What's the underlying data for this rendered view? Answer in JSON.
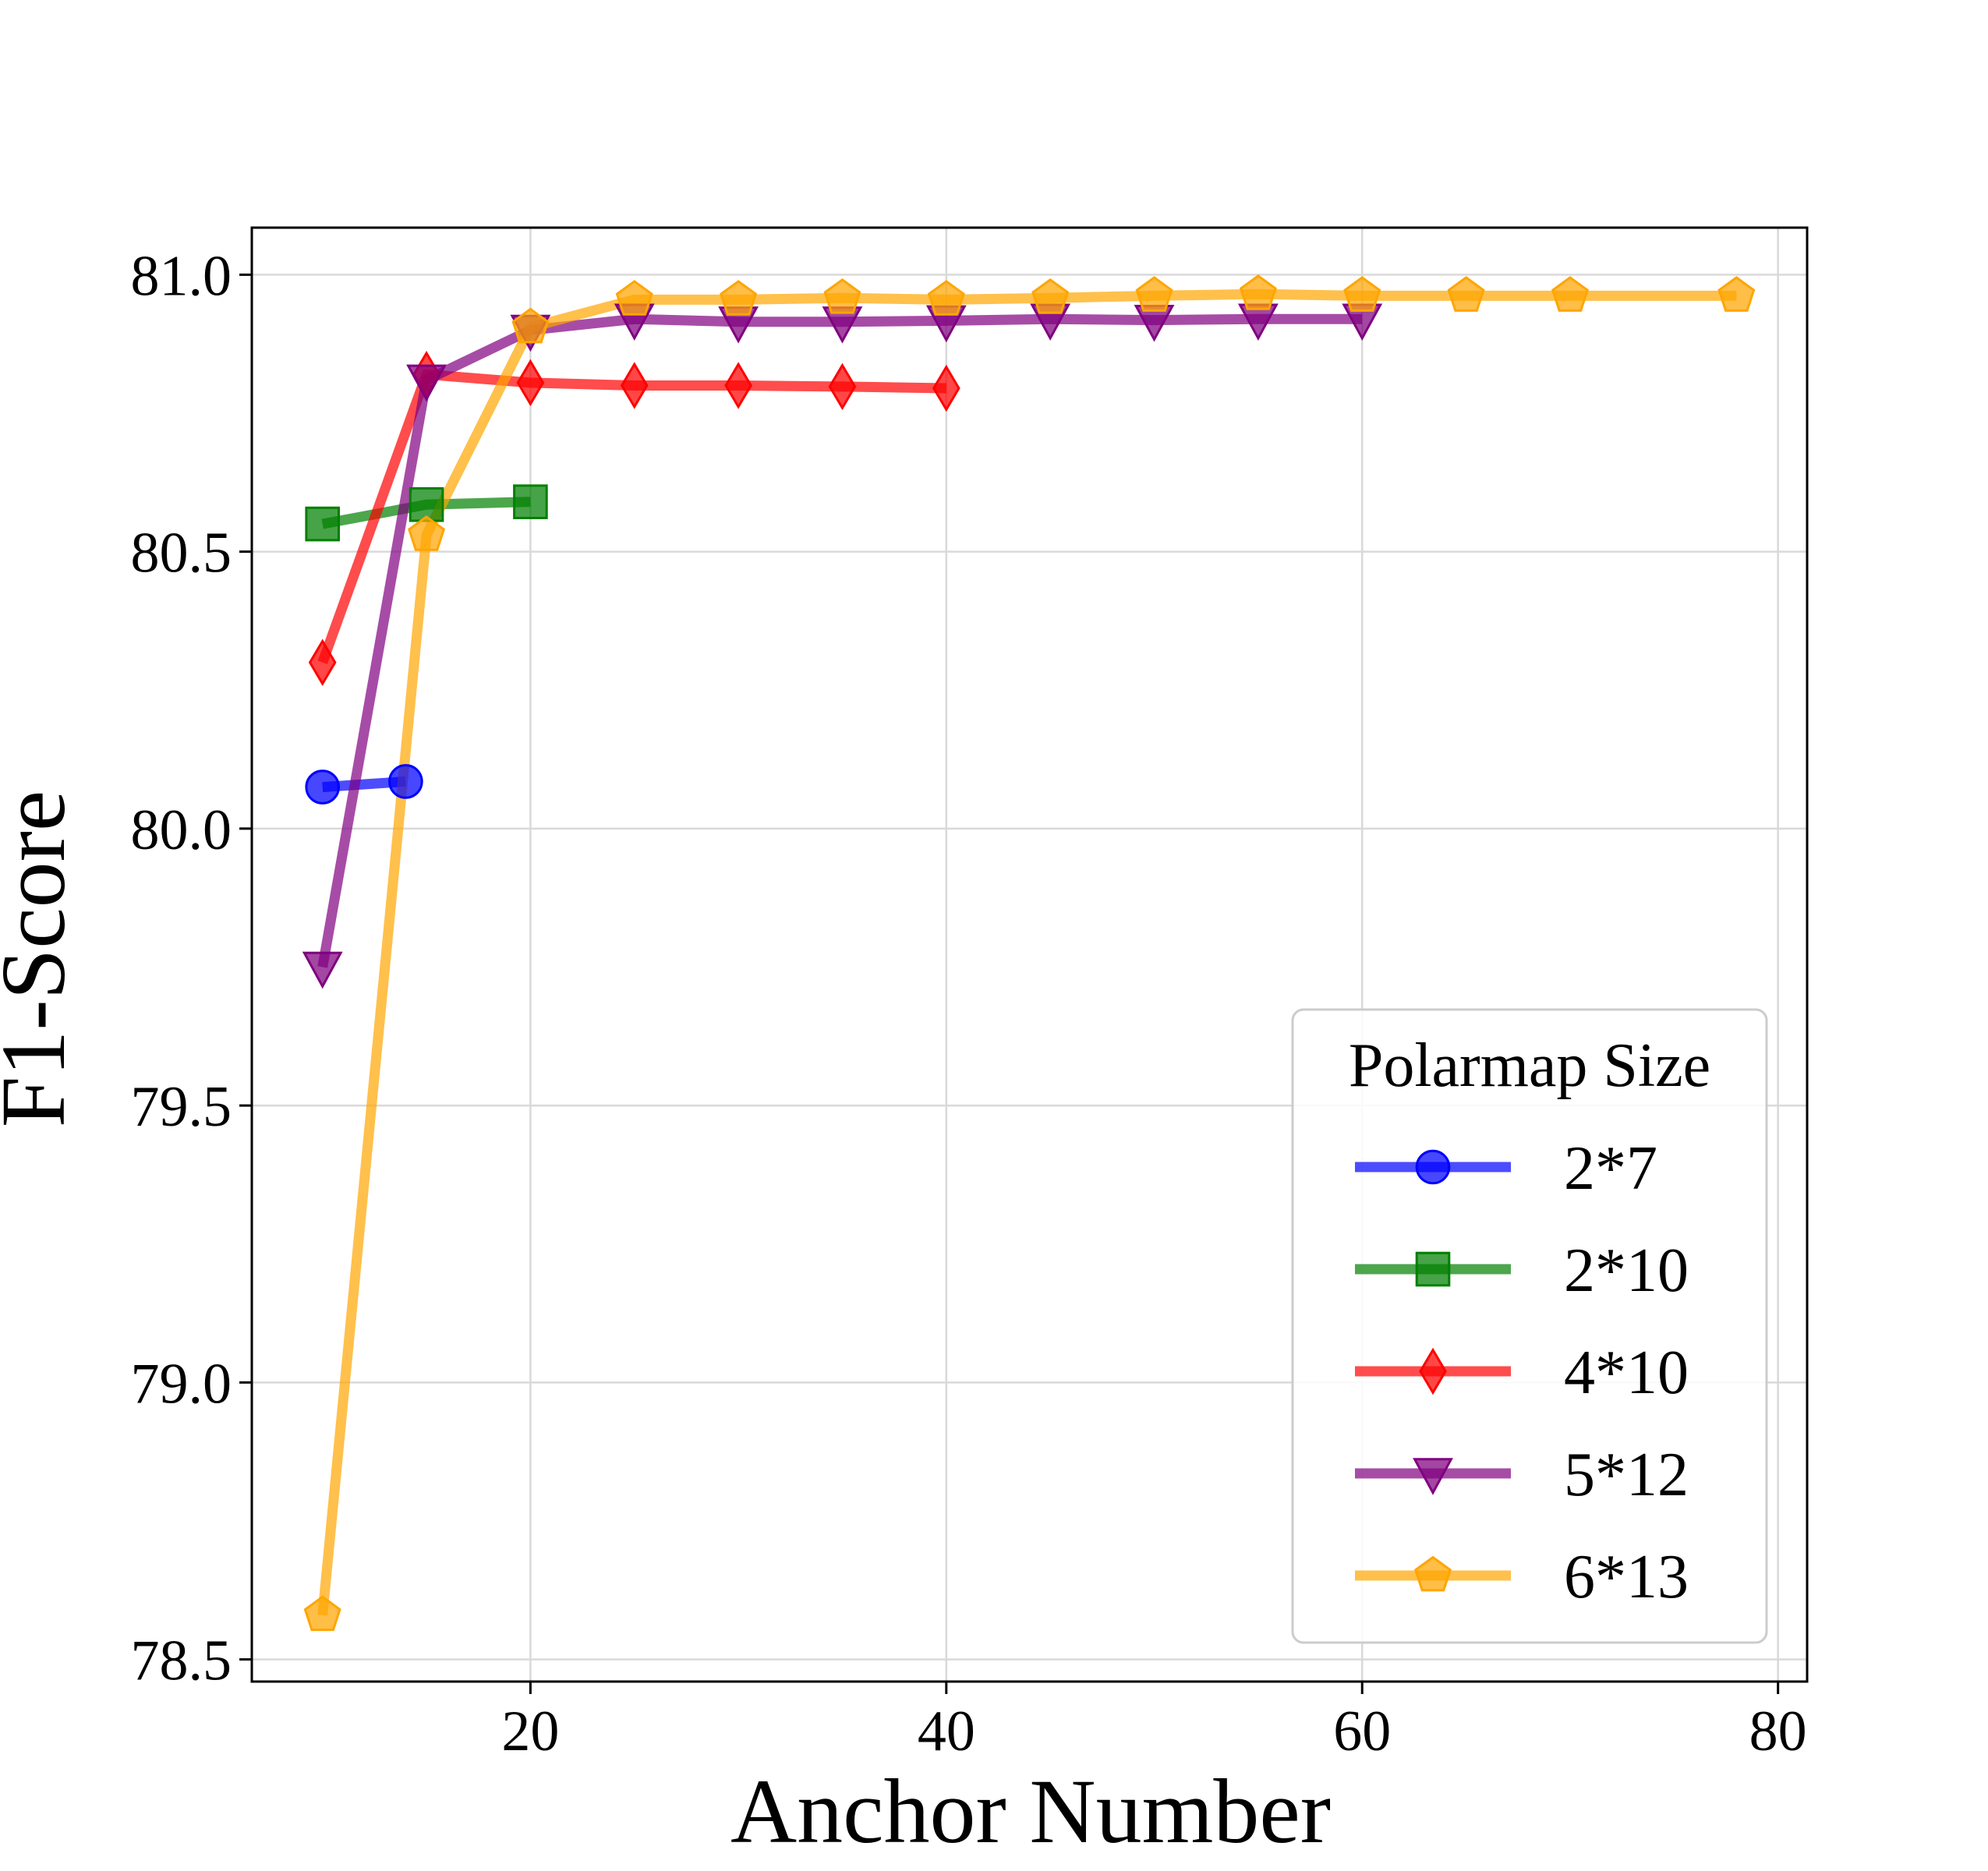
{
  "chart_data": {
    "type": "line",
    "xlabel": "Anchor Number",
    "ylabel": "F1-Score",
    "xlim": [
      6.6,
      81.4
    ],
    "ylim": [
      78.46,
      81.085
    ],
    "xticks": [
      20,
      40,
      60,
      80
    ],
    "yticks": [
      78.5,
      79.0,
      79.5,
      80.0,
      80.5,
      81.0
    ],
    "xtick_labels": [
      "20",
      "40",
      "60",
      "80"
    ],
    "ytick_labels": [
      "78.5",
      "79.0",
      "79.5",
      "80.0",
      "80.5",
      "81.0"
    ],
    "grid": true,
    "legend": {
      "title": "Polarmap Size",
      "placement": "lower-right"
    },
    "series": [
      {
        "name": "2*7",
        "color": "#0000ff",
        "marker": "circle",
        "x": [
          10,
          14
        ],
        "y": [
          80.075,
          80.085
        ]
      },
      {
        "name": "2*10",
        "color": "#008000",
        "marker": "square",
        "x": [
          10,
          15,
          20
        ],
        "y": [
          80.55,
          80.585,
          80.59
        ]
      },
      {
        "name": "4*10",
        "color": "#ff0000",
        "marker": "diamond",
        "x": [
          10,
          15,
          20,
          25,
          30,
          35,
          40
        ],
        "y": [
          80.3,
          80.82,
          80.805,
          80.8,
          80.8,
          80.798,
          80.795
        ]
      },
      {
        "name": "5*12",
        "color": "#800080",
        "marker": "triangle-down",
        "x": [
          10,
          15,
          20,
          25,
          30,
          35,
          40,
          45,
          50,
          55,
          60
        ],
        "y": [
          79.75,
          80.81,
          80.9,
          80.92,
          80.915,
          80.915,
          80.917,
          80.92,
          80.918,
          80.92,
          80.92
        ]
      },
      {
        "name": "6*13",
        "color": "#ffa500",
        "marker": "pentagon",
        "x": [
          10,
          15,
          20,
          25,
          30,
          35,
          40,
          45,
          50,
          55,
          60,
          65,
          70,
          78
        ],
        "y": [
          78.58,
          80.53,
          80.905,
          80.955,
          80.955,
          80.958,
          80.955,
          80.958,
          80.962,
          80.965,
          80.962,
          80.962,
          80.962,
          80.962
        ]
      }
    ]
  }
}
